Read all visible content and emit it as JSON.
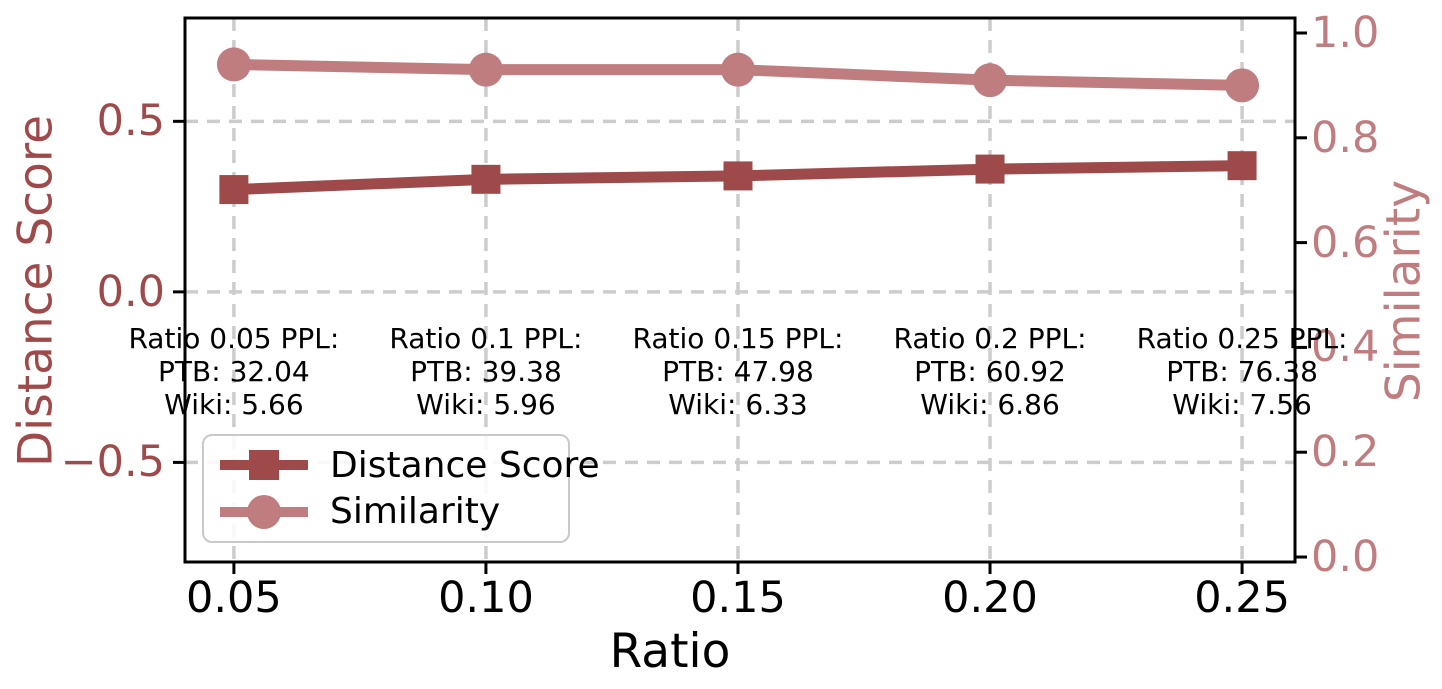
{
  "figure": {
    "background": "#ffffff",
    "grid_color": "#cccccc",
    "frame_color": "#000000"
  },
  "chart_data": {
    "type": "line",
    "title": "",
    "xlabel": "Ratio",
    "x": [
      0.05,
      0.1,
      0.15,
      0.2,
      0.25
    ],
    "x_tick_labels": [
      "0.05",
      "0.10",
      "0.15",
      "0.20",
      "0.25"
    ],
    "xlim": [
      0.0403,
      0.2605
    ],
    "grid": true,
    "series": [
      {
        "name": "Distance Score",
        "axis": "left",
        "marker": "square",
        "color": "#9e4a4a",
        "values": [
          0.3,
          0.33,
          0.34,
          0.36,
          0.37
        ]
      },
      {
        "name": "Similarity",
        "axis": "right",
        "marker": "circle",
        "color": "#bf7d7f",
        "values": [
          0.94,
          0.93,
          0.93,
          0.91,
          0.9
        ]
      }
    ],
    "left_axis": {
      "label": "Distance Score",
      "color": "#9e4a4a",
      "ticks": [
        0.5,
        0.0,
        -0.5
      ],
      "tick_labels": [
        "0.5",
        "0.0",
        "−0.5"
      ],
      "lim": [
        -0.792,
        0.803
      ]
    },
    "right_axis": {
      "label": "Similarity",
      "color": "#bf7d7f",
      "ticks": [
        1.0,
        0.8,
        0.6,
        0.4,
        0.2,
        0.0
      ],
      "tick_labels": [
        "1.0",
        "0.8",
        "0.6",
        "0.4",
        "0.2",
        "0.0"
      ],
      "lim": [
        -0.0095,
        1.0286
      ]
    },
    "legend": {
      "position": "lower-left",
      "entries": [
        "Distance Score",
        "Similarity"
      ]
    },
    "annotations": [
      {
        "x": 0.05,
        "lines": [
          "Ratio 0.05 PPL:",
          "PTB: 32.04",
          "Wiki: 5.66"
        ]
      },
      {
        "x": 0.1,
        "lines": [
          "Ratio 0.1 PPL:",
          "PTB: 39.38",
          "Wiki: 5.96"
        ]
      },
      {
        "x": 0.15,
        "lines": [
          "Ratio 0.15 PPL:",
          "PTB: 47.98",
          "Wiki: 6.33"
        ]
      },
      {
        "x": 0.2,
        "lines": [
          "Ratio 0.2 PPL:",
          "PTB: 60.92",
          "Wiki: 6.86"
        ]
      },
      {
        "x": 0.25,
        "lines": [
          "Ratio 0.25 PPL:",
          "PTB: 76.38",
          "Wiki: 7.56"
        ]
      }
    ]
  }
}
